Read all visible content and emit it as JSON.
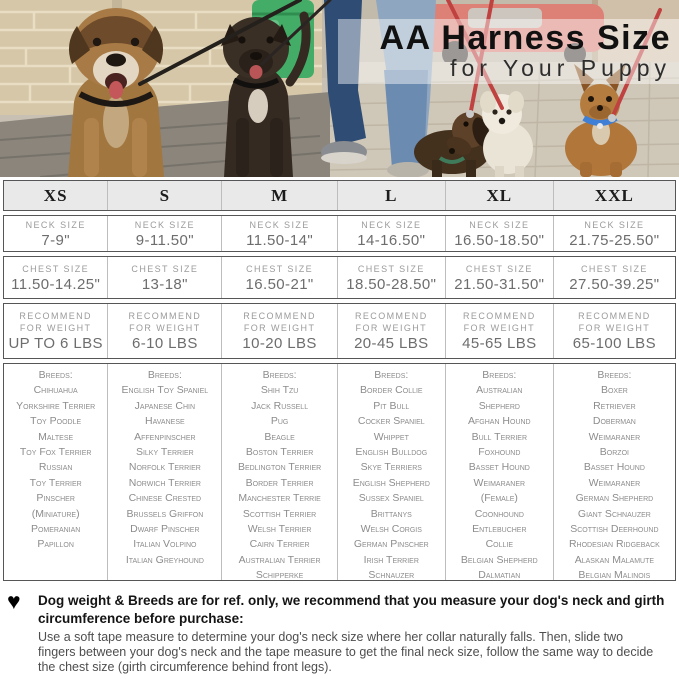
{
  "hero": {
    "title": "AA Harness Size",
    "subtitle": "for Your Puppy"
  },
  "table": {
    "sizes": [
      "XS",
      "S",
      "M",
      "L",
      "XL",
      "XXL"
    ],
    "neck_label": "NECK SIZE",
    "chest_label": "CHEST SIZE",
    "weight_label_line1": "RECOMMEND",
    "weight_label_line2": "FOR WEIGHT",
    "breeds_label": "Breeds:",
    "columns": [
      {
        "size": "XS",
        "neck": "7-9\"",
        "chest": "11.50-14.25\"",
        "weight": "UP TO 6 LBS",
        "breeds": [
          "Chihuahua",
          "Yorkshire Terrier",
          "Toy Poodle",
          "Maltese",
          "Toy Fox Terrier",
          "Russian",
          "Toy Terrier",
          "Pinscher",
          "(Miniature)",
          "Pomeranian",
          "Papillon"
        ]
      },
      {
        "size": "S",
        "neck": "9-11.50\"",
        "chest": "13-18\"",
        "weight": "6-10 LBS",
        "breeds": [
          "English Toy Spaniel",
          "Japanese Chin",
          "Havanese",
          "Affenpinscher",
          "Silky Terrier",
          "Norfolk Terrier",
          "Norwich Terrier",
          "Chinese Crested",
          "Brussels Griffon",
          "Dwarf Pinscher",
          "Italian Volpino",
          "Italian Greyhound"
        ]
      },
      {
        "size": "M",
        "neck": "11.50-14\"",
        "chest": "16.50-21\"",
        "weight": "10-20 LBS",
        "breeds": [
          "Shih Tzu",
          "Jack Russell",
          "Pug",
          "Beagle",
          "Boston Terrier",
          "Bedlington Terrier",
          "Border Terrier",
          "Manchester Terrie",
          "Scottish Terrier",
          "Welsh Terrier",
          "Cairn Terrier",
          "Australian Terrier",
          "Schipperke"
        ]
      },
      {
        "size": "L",
        "neck": "14-16.50\"",
        "chest": "18.50-28.50\"",
        "weight": "20-45 LBS",
        "breeds": [
          "Border Collie",
          "Pit Bull",
          "Cocker Spaniel",
          "Whippet",
          "English Bulldog",
          "Skye Terriers",
          "English Shepherd",
          "Sussex Spaniel",
          "Brittanys",
          "Welsh Corgis",
          "German Pinscher",
          "Irish Terrier",
          "Schnauzer"
        ]
      },
      {
        "size": "XL",
        "neck": "16.50-18.50\"",
        "chest": "21.50-31.50\"",
        "weight": "45-65 LBS",
        "breeds": [
          "Australian",
          "Shepherd",
          "Afghan Hound",
          "Bull Terrier",
          "Foxhound",
          "Basset Hound",
          "Weimaraner",
          "(Female)",
          "Coonhound",
          "Entlebucher",
          "Collie",
          "Belgian Shepherd",
          "Dalmatian"
        ]
      },
      {
        "size": "XXL",
        "neck": "21.75-25.50\"",
        "chest": "27.50-39.25\"",
        "weight": "65-100 LBS",
        "breeds": [
          "Boxer",
          "Retriever",
          "Doberman",
          "Weimaraner",
          "Borzoi",
          "Basset Hound",
          "Weimaraner",
          "German Shepherd",
          "Giant Schnauzer",
          "Scottish Deerhound",
          "Rhodesian Ridgeback",
          "Alaskan Malamute",
          "Belgian Malinois"
        ]
      }
    ]
  },
  "footer": {
    "heart_icon": "♥",
    "heading_line1": "Dog weight & Breeds are for ref. only, we recommend that you measure your dog's neck and girth",
    "heading_line2": "circumference before purchase:",
    "body": "Use a soft tape measure to determine your dog's neck size where her collar naturally falls. Then, slide two fingers between your dog's neck and the tape measure to get the final neck size, follow the same way to decide the chest size (girth circumference behind front legs)."
  },
  "colors": {
    "header_row_bg": "#e9e9e9",
    "band_border": "#565656",
    "column_separator": "#bdbdbd",
    "label_gray": "#9b9b9b",
    "value_gray": "#6d6d6d",
    "breeds_gray": "#8c8c8c",
    "leash_red": "#bf4140",
    "jeans_blue": "#2e4c74",
    "bin_green": "#43ad68",
    "wall_beige": "#d5c7a8"
  }
}
